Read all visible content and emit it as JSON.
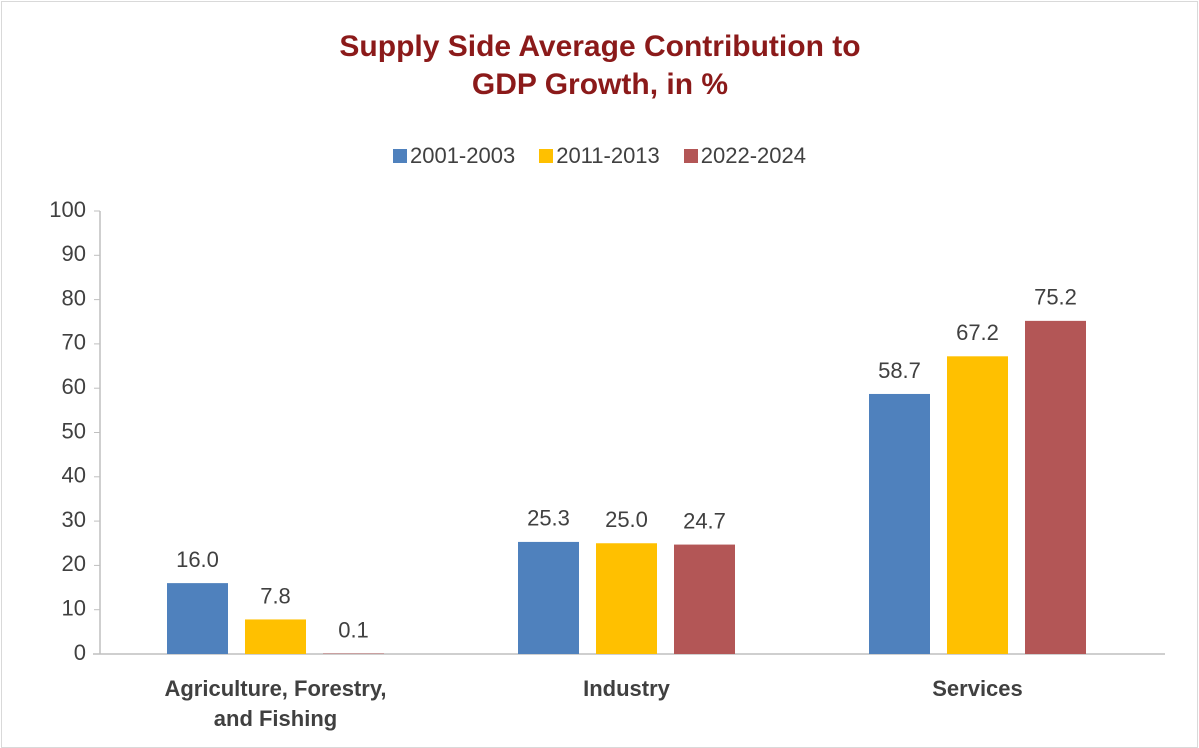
{
  "chart_data": {
    "type": "bar",
    "title": "Supply Side Average Contribution to GDP Growth, in %",
    "categories": [
      "Agriculture, Forestry, and Fishing",
      "Industry",
      "Services"
    ],
    "series": [
      {
        "name": "2001-2003",
        "color": "#4f81bd",
        "values": [
          16.0,
          25.3,
          58.7
        ],
        "value_labels": [
          "16.0",
          "25.3",
          "58.7"
        ]
      },
      {
        "name": "2011-2013",
        "color": "#ffc000",
        "values": [
          7.8,
          25.0,
          67.2
        ],
        "value_labels": [
          "7.8",
          "25.0",
          "67.2"
        ]
      },
      {
        "name": "2022-2024",
        "color": "#b35656",
        "values": [
          0.1,
          24.7,
          75.2
        ],
        "value_labels": [
          "0.1",
          "24.7",
          "75.2"
        ]
      }
    ],
    "ylim": [
      0,
      100
    ],
    "yticks": [
      0,
      10,
      20,
      30,
      40,
      50,
      60,
      70,
      80,
      90,
      100
    ],
    "legend": "top",
    "grid": false
  }
}
